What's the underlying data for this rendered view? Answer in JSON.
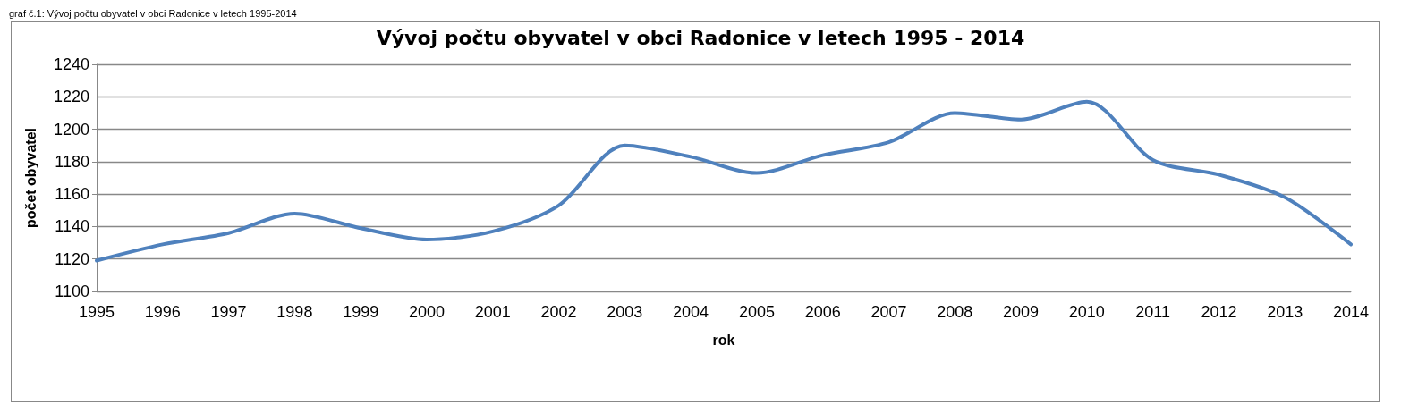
{
  "chart_data": {
    "type": "line",
    "title": "Vývoj počtu obyvatel v obci Radonice v letech 1995 - 2014",
    "xlabel": "rok",
    "ylabel": "počet obyvatel",
    "annotations": [
      "graf č.1: Vývoj počtu obyvatel v obci Radonice v letech 1995-2014"
    ],
    "categories": [
      "1995",
      "1996",
      "1997",
      "1998",
      "1999",
      "2000",
      "2001",
      "2002",
      "2003",
      "2004",
      "2005",
      "2006",
      "2007",
      "2008",
      "2009",
      "2010",
      "2011",
      "2012",
      "2013",
      "2014"
    ],
    "series": [
      {
        "color": "#4f81bd",
        "values": [
          1119,
          1129,
          1136,
          1148,
          1139,
          1132,
          1137,
          1153,
          1190,
          1183,
          1173,
          1184,
          1192,
          1210,
          1206,
          1217,
          1181,
          1172,
          1158,
          1129
        ]
      }
    ],
    "ylim": [
      1100,
      1240
    ],
    "yticks": [
      1100,
      1120,
      1140,
      1160,
      1180,
      1200,
      1220,
      1240
    ],
    "grid": "y",
    "marker": "none",
    "line_style": "solid"
  }
}
